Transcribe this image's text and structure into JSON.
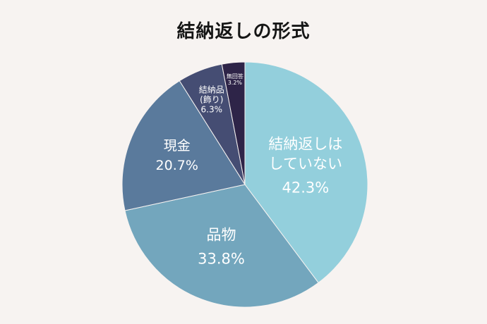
{
  "title": "結納返しの形式",
  "chart_data": {
    "type": "pie",
    "title": "結納返しの形式",
    "slices": [
      {
        "label_lines": [
          "結納返しは",
          "していない"
        ],
        "percent_text": "42.3%",
        "value": 42.3,
        "color": "#93cfdc"
      },
      {
        "label_lines": [
          "品物"
        ],
        "percent_text": "33.8%",
        "value": 33.8,
        "color": "#73a6bd"
      },
      {
        "label_lines": [
          "現金"
        ],
        "percent_text": "20.7%",
        "value": 20.7,
        "color": "#5a7a9c"
      },
      {
        "label_lines": [
          "結納品",
          "(飾り)"
        ],
        "percent_text": "6.3%",
        "value": 6.3,
        "color": "#454d73"
      },
      {
        "label_lines": [
          "無回答"
        ],
        "percent_text": "3.2%",
        "value": 3.2,
        "color": "#2e2448"
      }
    ],
    "legend": "none"
  }
}
